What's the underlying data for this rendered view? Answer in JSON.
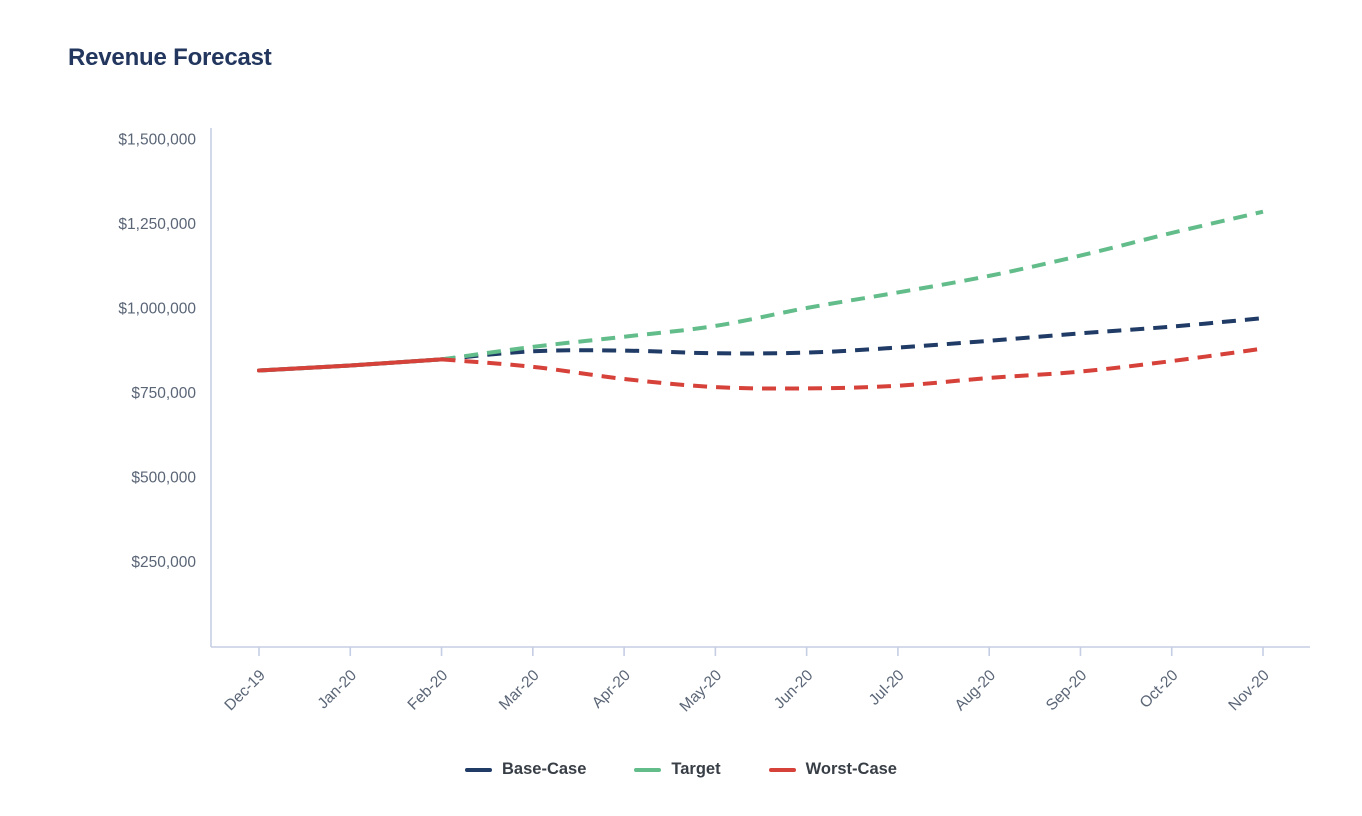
{
  "header": {
    "title": "Revenue Forecast"
  },
  "colors": {
    "background": "#ffffff",
    "title_text": "#22365e",
    "axis_line": "#c5cee4",
    "axis_tick_text": "#5a6576",
    "legend_text": "#383e46",
    "base_case": "#1f3b66",
    "target": "#63bd8b",
    "worst_case": "#d6423a"
  },
  "chart_data": {
    "type": "line",
    "title": "Revenue Forecast",
    "xlabel": "",
    "ylabel": "",
    "ylim": [
      0,
      1500000
    ],
    "grid": false,
    "legend_position": "bottom",
    "categories": [
      "Dec-19",
      "Jan-20",
      "Feb-20",
      "Mar-20",
      "Apr-20",
      "May-20",
      "Jun-20",
      "Jul-20",
      "Aug-20",
      "Sep-20",
      "Oct-20",
      "Nov-20"
    ],
    "y_ticks": [
      {
        "value": 250000,
        "label": "$250,000"
      },
      {
        "value": 500000,
        "label": "$500,000"
      },
      {
        "value": 750000,
        "label": "$750,000"
      },
      {
        "value": 1000000,
        "label": "$1,000,000"
      },
      {
        "value": 1250000,
        "label": "$1,250,000"
      },
      {
        "value": 1500000,
        "label": "$1,500,000"
      }
    ],
    "line_style": {
      "historical_segment": "solid",
      "forecast_segment": "dashed",
      "forecast_starts_at_index": 2
    },
    "series": [
      {
        "name": "Base-Case",
        "color": "#1f3b66",
        "values": [
          815000,
          830000,
          848000,
          872000,
          874000,
          866000,
          868000,
          883000,
          903000,
          925000,
          945000,
          970000
        ]
      },
      {
        "name": "Target",
        "color": "#63bd8b",
        "values": [
          815000,
          830000,
          848000,
          885000,
          915000,
          947000,
          1000000,
          1046000,
          1095000,
          1155000,
          1222000,
          1285000
        ]
      },
      {
        "name": "Worst-Case",
        "color": "#d6423a",
        "values": [
          815000,
          830000,
          848000,
          826000,
          790000,
          766000,
          762000,
          770000,
          793000,
          812000,
          843000,
          880000
        ]
      }
    ]
  }
}
